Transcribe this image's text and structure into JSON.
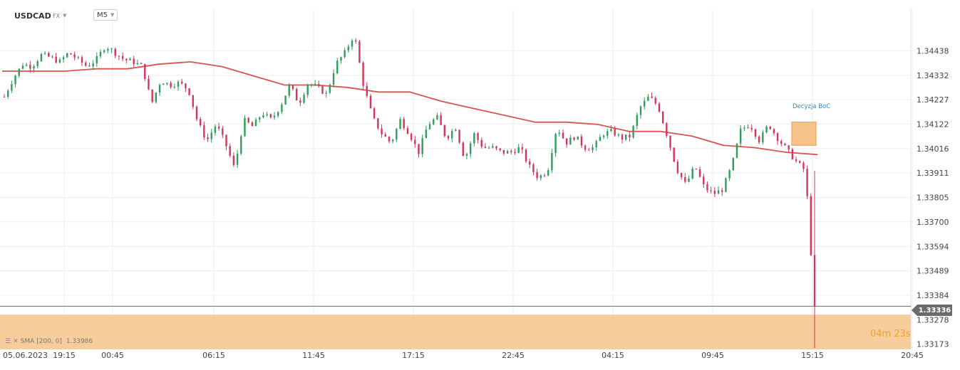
{
  "header": {
    "symbol": "USDCAD",
    "market": "FX",
    "timeframe": "M5"
  },
  "indicator": {
    "label": "SMA",
    "params": "[200,  0]",
    "value": "1.33986",
    "color": "#d9534f"
  },
  "price_tag": "1.33336",
  "countdown": "04m 23s",
  "colors": {
    "up": "#2e9e5a",
    "down": "#d6345b",
    "sma": "#d9534f",
    "highlight": "#f6c48a",
    "grid": "#eeeeee",
    "axis_text": "#444444"
  },
  "chart_data": {
    "type": "candlestick",
    "symbol": "USDCAD",
    "timeframe": "M5",
    "title": "",
    "xlabel": "",
    "ylabel": "",
    "y_ticks": [
      "1.34438",
      "1.34332",
      "1.34227",
      "1.34122",
      "1.34016",
      "1.33911",
      "1.33805",
      "1.33700",
      "1.33594",
      "1.33489",
      "1.33384",
      "1.33278",
      "1.33173"
    ],
    "x_ticks": [
      "05.06.2023",
      "19:15",
      "00:45",
      "06:15",
      "11:45",
      "17:15",
      "22:45",
      "04:15",
      "09:45",
      "15:15",
      "20:45"
    ],
    "ylim": [
      1.3315,
      1.3462
    ],
    "grid": true,
    "annotation": {
      "text": "Decyzja BoC",
      "price_low": 1.3403,
      "price_high": 1.3413
    },
    "last_price": 1.33336,
    "price_path": [
      1.3424,
      1.3432,
      1.3438,
      1.3437,
      1.3442,
      1.3441,
      1.3439,
      1.3443,
      1.344,
      1.3437,
      1.344,
      1.3446,
      1.3443,
      1.344,
      1.3439,
      1.3437,
      1.3421,
      1.3431,
      1.3429,
      1.343,
      1.3427,
      1.3413,
      1.3405,
      1.3412,
      1.3404,
      1.3393,
      1.3414,
      1.3411,
      1.3417,
      1.3414,
      1.342,
      1.3429,
      1.3421,
      1.343,
      1.3428,
      1.3425,
      1.3438,
      1.3443,
      1.3451,
      1.3429,
      1.3415,
      1.3408,
      1.3404,
      1.3414,
      1.3408,
      1.34,
      1.3412,
      1.3415,
      1.3406,
      1.3411,
      1.3397,
      1.3408,
      1.3402,
      1.3402,
      1.34,
      1.34,
      1.3402,
      1.3394,
      1.3389,
      1.3392,
      1.3411,
      1.3404,
      1.3407,
      1.3402,
      1.3402,
      1.3408,
      1.3409,
      1.3406,
      1.3407,
      1.3419,
      1.3424,
      1.342,
      1.3407,
      1.3393,
      1.3386,
      1.3394,
      1.3385,
      1.3382,
      1.3384,
      1.3394,
      1.341,
      1.3412,
      1.3405,
      1.3412,
      1.3406,
      1.3401,
      1.3396,
      1.3392,
      1.3333
    ],
    "sma_path": [
      1.3435,
      1.3435,
      1.3435,
      1.3436,
      1.3436,
      1.3438,
      1.3439,
      1.3437,
      1.3433,
      1.3429,
      1.3429,
      1.3428,
      1.3426,
      1.3426,
      1.3422,
      1.3419,
      1.3416,
      1.3413,
      1.3413,
      1.3412,
      1.3409,
      1.3409,
      1.3407,
      1.3403,
      1.3402,
      1.34,
      1.3399
    ]
  }
}
